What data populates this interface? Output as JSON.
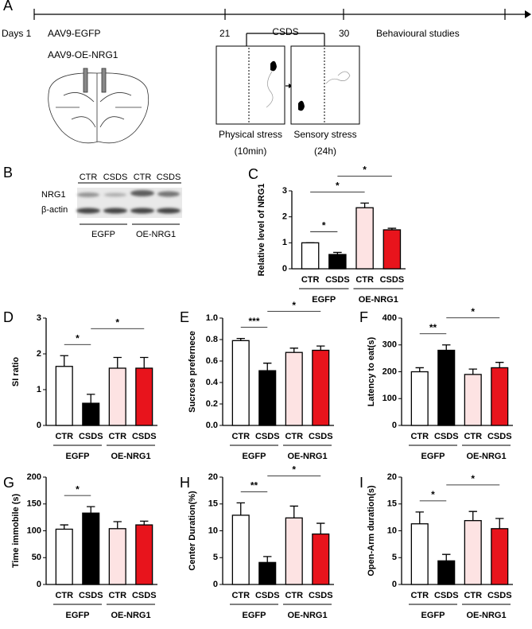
{
  "panel_a": {
    "label": "A",
    "timeline": [
      "Days 1",
      "21",
      "30",
      "Behavioural studies"
    ],
    "csds": "CSDS",
    "vectors": [
      "AAV9-EGFP",
      "AAV9-OE-NRG1"
    ],
    "stress": [
      {
        "name": "Physical stress",
        "duration": "(10min)"
      },
      {
        "name": "Sensory stress",
        "duration": "(24h)"
      }
    ]
  },
  "panel_b": {
    "label": "B",
    "lanes": [
      "CTR",
      "CSDS",
      "CTR",
      "CSDS"
    ],
    "bands": [
      "NRG1",
      "β-actin"
    ],
    "groups": [
      "EGFP",
      "OE-NRG1"
    ]
  },
  "chart_data": [
    {
      "type": "bar",
      "panel": "C",
      "y_label": "Relative level of NRG1",
      "categories": [
        "CTR",
        "CSDS",
        "CTR",
        "CSDS"
      ],
      "groups": [
        "EGFP",
        "OE-NRG1"
      ],
      "values": [
        1.0,
        0.55,
        2.35,
        1.5
      ],
      "errors": [
        0,
        0.08,
        0.18,
        0.06
      ],
      "colors": [
        "#ffffff",
        "#000000",
        "#fde3e3",
        "#e8141c"
      ],
      "ylim": [
        0,
        3
      ],
      "yticks": [
        0,
        1,
        2,
        3
      ],
      "significance": [
        "*",
        "*",
        "*"
      ]
    },
    {
      "type": "bar",
      "panel": "D",
      "y_label": "SI ratio",
      "categories": [
        "CTR",
        "CSDS",
        "CTR",
        "CSDS"
      ],
      "groups": [
        "EGFP",
        "OE-NRG1"
      ],
      "values": [
        1.65,
        0.62,
        1.6,
        1.6
      ],
      "errors": [
        0.3,
        0.25,
        0.3,
        0.3
      ],
      "colors": [
        "#ffffff",
        "#000000",
        "#fde3e3",
        "#e8141c"
      ],
      "ylim": [
        0,
        3
      ],
      "yticks": [
        0,
        1,
        2,
        3
      ],
      "significance": [
        "*",
        "*"
      ]
    },
    {
      "type": "bar",
      "panel": "E",
      "y_label": "Sucrose prefernece",
      "categories": [
        "CTR",
        "CSDS",
        "CTR",
        "CSDS"
      ],
      "groups": [
        "EGFP",
        "OE-NRG1"
      ],
      "values": [
        0.79,
        0.51,
        0.68,
        0.7
      ],
      "errors": [
        0.02,
        0.07,
        0.04,
        0.04
      ],
      "colors": [
        "#ffffff",
        "#000000",
        "#fde3e3",
        "#e8141c"
      ],
      "ylim": [
        0,
        1
      ],
      "yticks": [
        {
          "value": 0,
          "label": "0.0"
        },
        0.2,
        0.4,
        0.6,
        0.8,
        {
          "value": 1,
          "label": "1.0"
        }
      ],
      "significance": [
        "***",
        "*"
      ]
    },
    {
      "type": "bar",
      "panel": "F",
      "y_label": "Latency to eat(s)",
      "categories": [
        "CTR",
        "CSDS",
        "CTR",
        "CSDS"
      ],
      "groups": [
        "EGFP",
        "OE-NRG1"
      ],
      "values": [
        200,
        280,
        190,
        215
      ],
      "errors": [
        15,
        20,
        20,
        20
      ],
      "colors": [
        "#ffffff",
        "#000000",
        "#fde3e3",
        "#e8141c"
      ],
      "ylim": [
        0,
        400
      ],
      "yticks": [
        0,
        100,
        200,
        300,
        400
      ],
      "significance": [
        "**",
        "*"
      ]
    },
    {
      "type": "bar",
      "panel": "G",
      "y_label": "Time immobile (s)",
      "categories": [
        "CTR",
        "CSDS",
        "CTR",
        "CSDS"
      ],
      "groups": [
        "EGFP",
        "OE-NRG1"
      ],
      "values": [
        103,
        133,
        104,
        111
      ],
      "errors": [
        8,
        12,
        13,
        7
      ],
      "colors": [
        "#ffffff",
        "#000000",
        "#fde3e3",
        "#e8141c"
      ],
      "ylim": [
        0,
        200
      ],
      "yticks": [
        0,
        50,
        100,
        150,
        200
      ],
      "significance": [
        "*"
      ]
    },
    {
      "type": "bar",
      "panel": "H",
      "y_label": "Center Duration(%)",
      "categories": [
        "CTR",
        "CSDS",
        "CTR",
        "CSDS"
      ],
      "groups": [
        "EGFP",
        "OE-NRG1"
      ],
      "values": [
        12.9,
        4.1,
        12.4,
        9.4
      ],
      "errors": [
        2.3,
        1.1,
        2.2,
        2.0
      ],
      "colors": [
        "#ffffff",
        "#000000",
        "#fde3e3",
        "#e8141c"
      ],
      "ylim": [
        0,
        20
      ],
      "yticks": [
        0,
        5,
        10,
        15,
        20
      ],
      "significance": [
        "**",
        "*"
      ]
    },
    {
      "type": "bar",
      "panel": "I",
      "y_label": "Open-Arm duration(s)",
      "categories": [
        "CTR",
        "CSDS",
        "CTR",
        "CSDS"
      ],
      "groups": [
        "EGFP",
        "OE-NRG1"
      ],
      "values": [
        11.3,
        4.4,
        11.9,
        10.4
      ],
      "errors": [
        2.2,
        1.2,
        1.7,
        1.9
      ],
      "colors": [
        "#ffffff",
        "#000000",
        "#fde3e3",
        "#e8141c"
      ],
      "ylim": [
        0,
        20
      ],
      "yticks": [
        0,
        5,
        10,
        15,
        20
      ],
      "significance": [
        "*",
        "*"
      ]
    }
  ]
}
